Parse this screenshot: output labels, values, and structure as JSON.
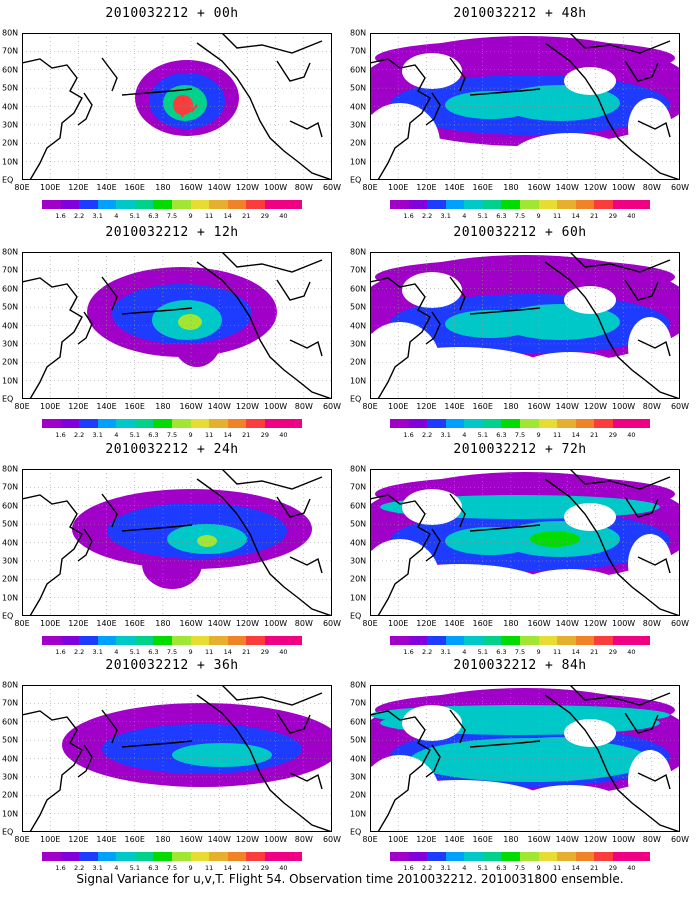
{
  "caption": "Signal Variance for u,v,T. Flight 54. Observation time 2010032212. 2010031800 ensemble.",
  "lat_labels": [
    "80N",
    "70N",
    "60N",
    "50N",
    "40N",
    "30N",
    "20N",
    "10N",
    "EQ"
  ],
  "lon_labels": [
    "80E",
    "100E",
    "120E",
    "140E",
    "160E",
    "180",
    "160W",
    "140W",
    "120W",
    "100W",
    "80W",
    "60W"
  ],
  "colorbar": {
    "labels": [
      "1.6",
      "2.2",
      "3.1",
      "4",
      "5.1",
      "6.3",
      "7.5",
      "9",
      "11",
      "14",
      "21",
      "29",
      "40"
    ],
    "colors": [
      "#a000c8",
      "#8200dc",
      "#1e3cff",
      "#00a0ff",
      "#00c8c8",
      "#00d28c",
      "#00dc00",
      "#a0e632",
      "#e6dc32",
      "#e6af2d",
      "#f08228",
      "#fa3c3c",
      "#f00082"
    ]
  },
  "panels": [
    {
      "title": "2010032212 + 00h",
      "level": 0
    },
    {
      "title": "2010032212 + 12h",
      "level": 1
    },
    {
      "title": "2010032212 + 24h",
      "level": 2
    },
    {
      "title": "2010032212 + 36h",
      "level": 3
    },
    {
      "title": "2010032212 + 48h",
      "level": 4
    },
    {
      "title": "2010032212 + 60h",
      "level": 5
    },
    {
      "title": "2010032212 + 72h",
      "level": 6
    },
    {
      "title": "2010032212 + 84h",
      "level": 7
    }
  ]
}
